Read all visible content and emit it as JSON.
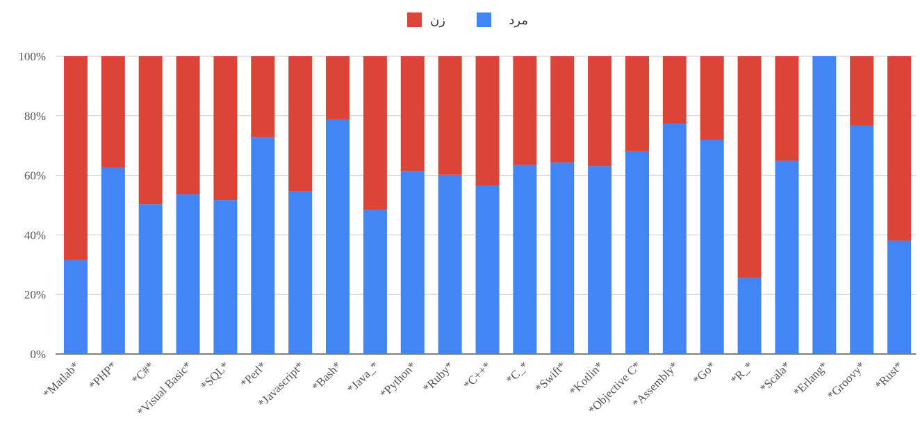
{
  "chart_data": {
    "type": "bar",
    "stacked": true,
    "percent": true,
    "categories": [
      "*Matlab*",
      "*PHP*",
      "*C#*",
      "*Visual Basic*",
      "*SQL*",
      "*Perl*",
      "*Javascript*",
      "*Bash*",
      "*Java_*",
      "*Python*",
      "*Ruby*",
      "*C++*",
      "*C_*",
      "*Swift*",
      "*Kotlin*",
      "*Objective C*",
      "*Assembly*",
      "*Go*",
      "*R_*",
      "*Scala*",
      "*Erlang*",
      "*Groovy*",
      "*Rust*"
    ],
    "series": [
      {
        "name": "مرد",
        "color": "#4285f4",
        "values": [
          31.5,
          62.5,
          50.3,
          53.6,
          51.7,
          72.9,
          54.6,
          78.8,
          48.4,
          61.5,
          60.2,
          56.5,
          63.5,
          64.3,
          63.1,
          68.1,
          77.4,
          71.9,
          25.6,
          64.9,
          100,
          76.7,
          38.1
        ]
      },
      {
        "name": "زن",
        "color": "#db4437",
        "values": [
          68.5,
          37.5,
          49.7,
          46.4,
          48.3,
          27.1,
          45.4,
          21.2,
          51.6,
          38.5,
          39.8,
          43.5,
          36.5,
          35.7,
          36.9,
          31.9,
          22.6,
          28.1,
          74.4,
          35.1,
          0,
          23.3,
          61.9
        ]
      }
    ],
    "ylim": [
      0,
      100
    ],
    "yticks": [
      "0%",
      "20%",
      "40%",
      "60%",
      "80%",
      "100%"
    ],
    "legend_position": "top",
    "grid": true
  }
}
